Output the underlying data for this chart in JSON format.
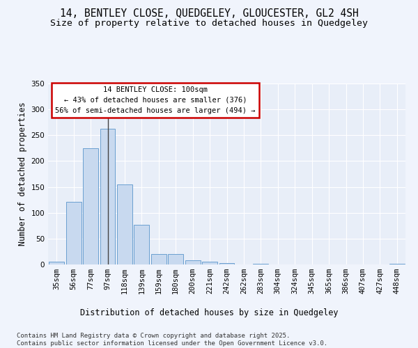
{
  "title1": "14, BENTLEY CLOSE, QUEDGELEY, GLOUCESTER, GL2 4SH",
  "title2": "Size of property relative to detached houses in Quedgeley",
  "xlabel": "Distribution of detached houses by size in Quedgeley",
  "ylabel": "Number of detached properties",
  "categories": [
    "35sqm",
    "56sqm",
    "77sqm",
    "97sqm",
    "118sqm",
    "139sqm",
    "159sqm",
    "180sqm",
    "200sqm",
    "221sqm",
    "242sqm",
    "262sqm",
    "283sqm",
    "304sqm",
    "324sqm",
    "345sqm",
    "365sqm",
    "386sqm",
    "407sqm",
    "427sqm",
    "448sqm"
  ],
  "values": [
    6,
    121,
    225,
    263,
    155,
    77,
    20,
    20,
    8,
    5,
    3,
    0,
    1,
    0,
    0,
    0,
    0,
    0,
    0,
    0,
    2
  ],
  "bar_color": "#c8d9ef",
  "bar_edge_color": "#6a9fd0",
  "highlight_bar_index": 3,
  "highlight_line_color": "#444444",
  "annotation_text": "14 BENTLEY CLOSE: 100sqm\n← 43% of detached houses are smaller (376)\n56% of semi-detached houses are larger (494) →",
  "annotation_box_color": "#ffffff",
  "annotation_box_edge": "#cc0000",
  "ylim": [
    0,
    350
  ],
  "yticks": [
    0,
    50,
    100,
    150,
    200,
    250,
    300,
    350
  ],
  "plot_bg_color": "#e8eef8",
  "fig_bg_color": "#f0f4fc",
  "grid_color": "#ffffff",
  "footer_text": "Contains HM Land Registry data © Crown copyright and database right 2025.\nContains public sector information licensed under the Open Government Licence v3.0.",
  "title_fontsize": 10.5,
  "subtitle_fontsize": 9.5,
  "axis_label_fontsize": 8.5,
  "tick_fontsize": 7.5,
  "annotation_fontsize": 7.5,
  "footer_fontsize": 6.5
}
